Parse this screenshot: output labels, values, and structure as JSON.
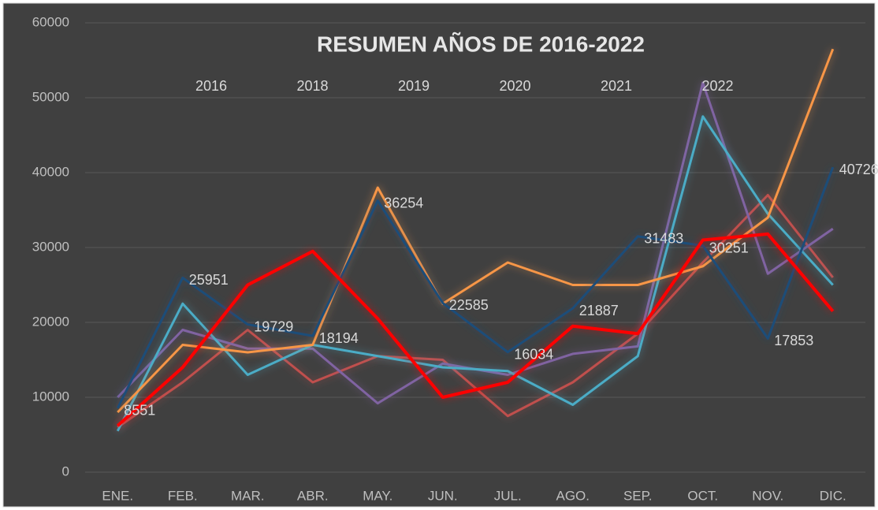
{
  "chart_data": {
    "type": "line",
    "title": "RESUMEN AÑOS DE 2016-2022",
    "categories": [
      "ENE.",
      "FEB.",
      "MAR.",
      "ABR.",
      "MAY.",
      "JUN.",
      "JUL.",
      "AGO.",
      "SEP.",
      "OCT.",
      "NOV.",
      "DIC."
    ],
    "series": [
      {
        "name": "2016",
        "color": "#c0504d",
        "values": [
          6000,
          12000,
          19000,
          12000,
          15500,
          15000,
          7500,
          12000,
          18500,
          28000,
          37000,
          26000
        ]
      },
      {
        "name": "2018",
        "color": "#8064a2",
        "values": [
          10000,
          19000,
          16500,
          16500,
          9200,
          14500,
          13000,
          15800,
          16800,
          52000,
          26500,
          32500
        ]
      },
      {
        "name": "2019",
        "color": "#4bacc6",
        "values": [
          5500,
          22500,
          13000,
          17000,
          15500,
          14000,
          13500,
          9000,
          15500,
          47500,
          34500,
          25000
        ]
      },
      {
        "name": "2020",
        "color": "#f79646",
        "values": [
          8000,
          17000,
          16000,
          17000,
          38000,
          22500,
          28000,
          25000,
          25000,
          27500,
          34000,
          56500
        ]
      },
      {
        "name": "2021",
        "color": "#1f4e79",
        "values": [
          8551,
          25951,
          19729,
          18194,
          36254,
          22585,
          16034,
          21887,
          31483,
          30251,
          17853,
          40726
        ],
        "data_labels": true
      },
      {
        "name": "2022",
        "color": "#ff0000",
        "values": [
          6200,
          14000,
          25000,
          29500,
          20500,
          10000,
          12000,
          19500,
          18500,
          31000,
          31800,
          21500
        ]
      }
    ],
    "ylim": [
      0,
      60000
    ],
    "yticks": [
      0,
      10000,
      20000,
      30000,
      40000,
      50000,
      60000
    ],
    "grid": true,
    "legend": "top"
  }
}
